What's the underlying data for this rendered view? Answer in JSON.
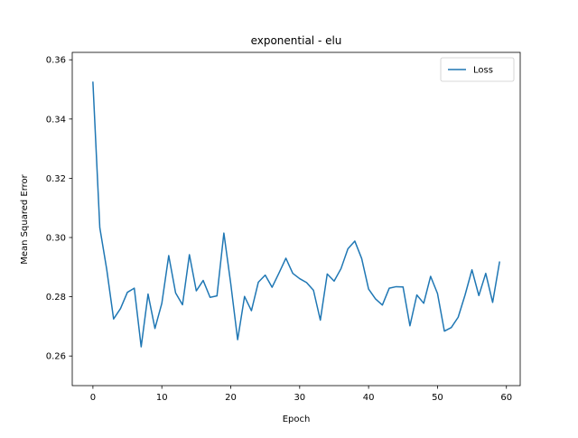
{
  "chart_data": {
    "type": "line",
    "title": "exponential - elu",
    "xlabel": "Epoch",
    "ylabel": "Mean Squared Error",
    "xlim": [
      -3,
      62
    ],
    "ylim": [
      0.25,
      0.3625
    ],
    "xticks": [
      0,
      10,
      20,
      30,
      40,
      50,
      60
    ],
    "yticks": [
      0.26,
      0.28,
      0.3,
      0.32,
      0.34,
      0.36
    ],
    "ytick_labels": [
      "0.26",
      "0.28",
      "0.30",
      "0.32",
      "0.34",
      "0.36"
    ],
    "legend": "top-right",
    "grid": false,
    "series": [
      {
        "name": "Loss",
        "color": "#1f77b4",
        "x": [
          0,
          1,
          2,
          3,
          4,
          5,
          6,
          7,
          8,
          9,
          10,
          11,
          12,
          13,
          14,
          15,
          16,
          17,
          18,
          19,
          20,
          21,
          22,
          23,
          24,
          25,
          26,
          27,
          28,
          29,
          30,
          31,
          32,
          33,
          34,
          35,
          36,
          37,
          38,
          39,
          40,
          41,
          42,
          43,
          44,
          45,
          46,
          47,
          48,
          49,
          50,
          51,
          52,
          53,
          54,
          55,
          56,
          57,
          58,
          59
        ],
        "values": [
          0.3524,
          0.3033,
          0.2893,
          0.2725,
          0.276,
          0.2815,
          0.2829,
          0.2631,
          0.2809,
          0.2693,
          0.2778,
          0.2939,
          0.2813,
          0.2773,
          0.2942,
          0.282,
          0.2855,
          0.2798,
          0.2803,
          0.3015,
          0.2844,
          0.2655,
          0.2801,
          0.2753,
          0.2849,
          0.2873,
          0.2832,
          0.288,
          0.293,
          0.2879,
          0.2861,
          0.2848,
          0.2822,
          0.2721,
          0.2877,
          0.2853,
          0.2895,
          0.2962,
          0.2988,
          0.2929,
          0.2826,
          0.2793,
          0.2772,
          0.2829,
          0.2834,
          0.2833,
          0.2702,
          0.2806,
          0.2778,
          0.2869,
          0.2811,
          0.2684,
          0.2696,
          0.2731,
          0.2806,
          0.2891,
          0.2804,
          0.2879,
          0.2781,
          0.2917
        ]
      }
    ]
  }
}
